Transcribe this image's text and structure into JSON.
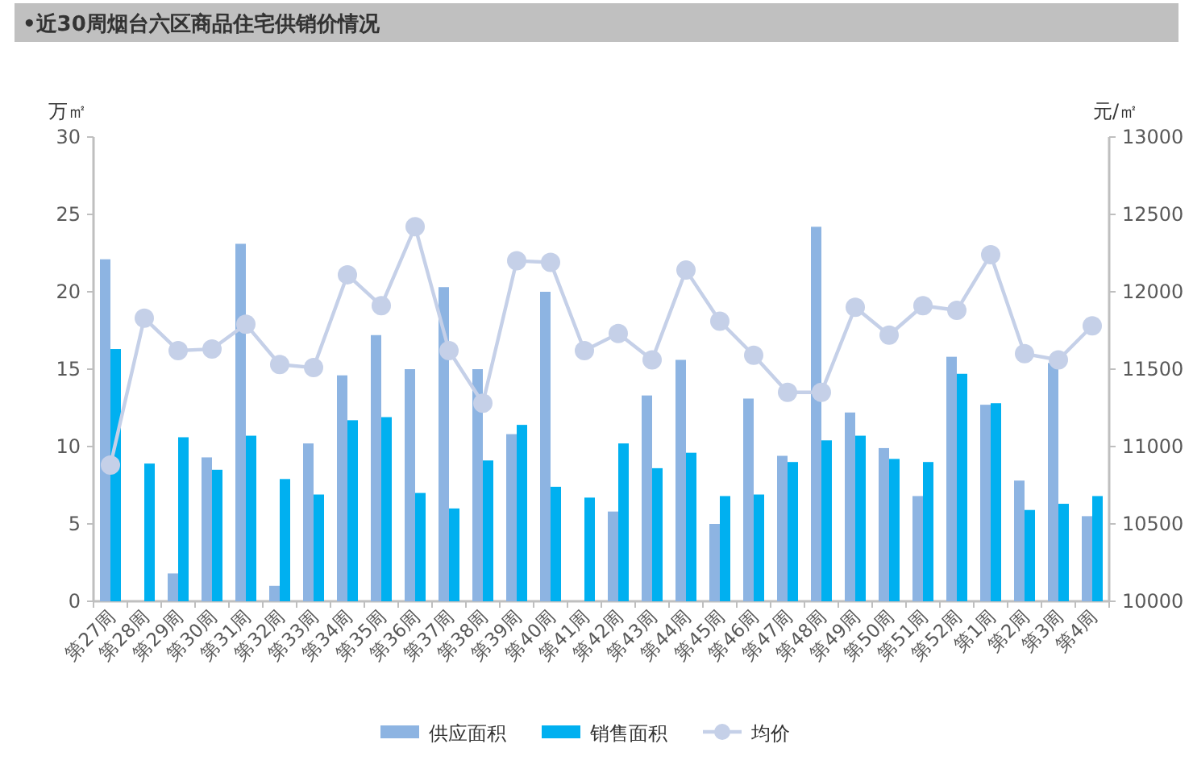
{
  "chart_data": {
    "type": "bar",
    "title": "•近30周烟台六区商品住宅供销价情况",
    "ylabel": "万㎡",
    "y2label": "元/㎡",
    "categories": [
      "第27周",
      "第28周",
      "第29周",
      "第30周",
      "第31周",
      "第32周",
      "第33周",
      "第34周",
      "第35周",
      "第36周",
      "第37周",
      "第38周",
      "第39周",
      "第40周",
      "第41周",
      "第42周",
      "第43周",
      "第44周",
      "第45周",
      "第46周",
      "第47周",
      "第48周",
      "第49周",
      "第50周",
      "第51周",
      "第52周",
      "第1周",
      "第2周",
      "第3周",
      "第4周"
    ],
    "series": [
      {
        "name": "供应面积",
        "color": "#8db4e2",
        "values": [
          22.1,
          null,
          1.8,
          9.3,
          23.1,
          1.0,
          10.2,
          14.6,
          17.2,
          15.0,
          20.3,
          15.0,
          10.8,
          20.0,
          null,
          5.8,
          13.3,
          15.6,
          5.0,
          13.1,
          9.4,
          24.2,
          12.2,
          9.9,
          6.8,
          15.8,
          12.7,
          7.8,
          15.4,
          5.5
        ]
      },
      {
        "name": "销售面积",
        "color": "#00b0f0",
        "values": [
          16.3,
          8.9,
          10.6,
          8.5,
          10.7,
          7.9,
          6.9,
          11.7,
          11.9,
          7.0,
          6.0,
          9.1,
          11.4,
          7.4,
          6.7,
          10.2,
          8.6,
          9.6,
          6.8,
          6.9,
          9.0,
          10.4,
          10.7,
          9.2,
          9.0,
          14.7,
          12.8,
          5.9,
          6.3,
          6.8
        ]
      },
      {
        "name": "均价",
        "type": "line",
        "axis": "y2",
        "color": "#c5d0e8",
        "values": [
          10880,
          11830,
          11620,
          11630,
          11790,
          11530,
          11510,
          12110,
          11910,
          12420,
          11620,
          11280,
          12200,
          12190,
          11620,
          11730,
          11560,
          12140,
          11810,
          11590,
          11350,
          11350,
          11900,
          11720,
          11910,
          11880,
          12240,
          11600,
          11560,
          11780
        ]
      }
    ],
    "ylim": [
      0,
      30
    ],
    "yticks": [
      0,
      5,
      10,
      15,
      20,
      25,
      30
    ],
    "y2lim": [
      10000,
      13000
    ],
    "y2ticks": [
      10000,
      10500,
      11000,
      11500,
      12000,
      12500,
      13000
    ],
    "marker": "circle",
    "legend": "bottom"
  }
}
